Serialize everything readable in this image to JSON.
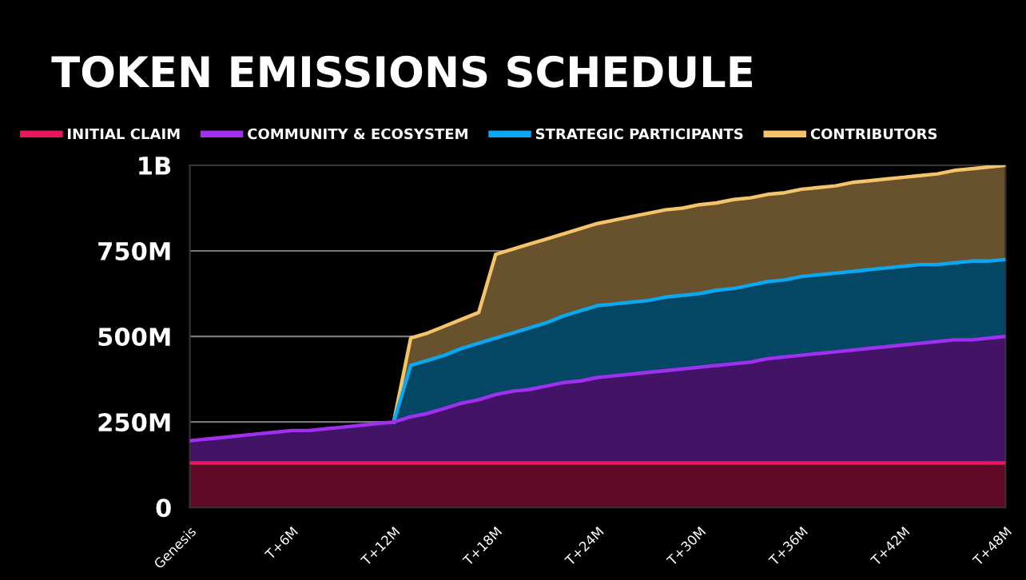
{
  "chart_data": {
    "type": "area",
    "title": "TOKEN EMISSIONS SCHEDULE",
    "categories": [
      "Genesis",
      null,
      null,
      null,
      null,
      null,
      "T+6M",
      null,
      null,
      null,
      null,
      null,
      "T+12M",
      null,
      null,
      null,
      null,
      null,
      "T+18M",
      null,
      null,
      null,
      null,
      null,
      "T+24M",
      null,
      null,
      null,
      null,
      null,
      "T+30M",
      null,
      null,
      null,
      null,
      null,
      "T+36M",
      null,
      null,
      null,
      null,
      null,
      "T+42M",
      null,
      null,
      null,
      null,
      null,
      "T+48M"
    ],
    "ylim": [
      0,
      1000000000
    ],
    "yticks": [
      0,
      {
        "value": 250000000,
        "label": "250M"
      },
      {
        "value": 500000000,
        "label": "500M"
      },
      {
        "value": 750000000,
        "label": "750M"
      },
      {
        "value": 1000000000,
        "label": "1B"
      }
    ],
    "grid": "y",
    "legend": "top",
    "series": [
      {
        "name": "CONTRIBUTORS",
        "color": "#f5c36a",
        "values": [
          null,
          null,
          null,
          null,
          null,
          null,
          null,
          null,
          null,
          null,
          null,
          null,
          250000000,
          495000000,
          510000000,
          530000000,
          550000000,
          570000000,
          740000000,
          755000000,
          770000000,
          785000000,
          800000000,
          815000000,
          830000000,
          840000000,
          850000000,
          860000000,
          870000000,
          875000000,
          885000000,
          890000000,
          900000000,
          905000000,
          915000000,
          920000000,
          930000000,
          935000000,
          940000000,
          950000000,
          955000000,
          960000000,
          965000000,
          970000000,
          975000000,
          985000000,
          990000000,
          995000000,
          1000000000
        ]
      },
      {
        "name": "STRATEGIC PARTICIPANTS",
        "color": "#0aa8f0",
        "values": [
          null,
          null,
          null,
          null,
          null,
          null,
          null,
          null,
          null,
          null,
          null,
          null,
          250000000,
          415000000,
          430000000,
          445000000,
          465000000,
          480000000,
          495000000,
          510000000,
          525000000,
          540000000,
          560000000,
          575000000,
          590000000,
          595000000,
          600000000,
          605000000,
          615000000,
          620000000,
          625000000,
          635000000,
          640000000,
          650000000,
          660000000,
          665000000,
          675000000,
          680000000,
          685000000,
          690000000,
          695000000,
          700000000,
          705000000,
          710000000,
          710000000,
          715000000,
          720000000,
          720000000,
          725000000
        ]
      },
      {
        "name": "COMMUNITY & ECOSYSTEM",
        "color": "#a030f0",
        "values": [
          195000000,
          200000000,
          205000000,
          210000000,
          215000000,
          220000000,
          225000000,
          225000000,
          230000000,
          235000000,
          240000000,
          245000000,
          250000000,
          265000000,
          275000000,
          290000000,
          305000000,
          315000000,
          330000000,
          340000000,
          345000000,
          355000000,
          365000000,
          370000000,
          380000000,
          385000000,
          390000000,
          395000000,
          400000000,
          405000000,
          410000000,
          415000000,
          420000000,
          425000000,
          435000000,
          440000000,
          445000000,
          450000000,
          455000000,
          460000000,
          465000000,
          470000000,
          475000000,
          480000000,
          485000000,
          490000000,
          490000000,
          495000000,
          500000000
        ]
      },
      {
        "name": "INITIAL CLAIM",
        "color": "#e8175d",
        "values": [
          130000000,
          130000000,
          130000000,
          130000000,
          130000000,
          130000000,
          130000000,
          130000000,
          130000000,
          130000000,
          130000000,
          130000000,
          130000000,
          130000000,
          130000000,
          130000000,
          130000000,
          130000000,
          130000000,
          130000000,
          130000000,
          130000000,
          130000000,
          130000000,
          130000000,
          130000000,
          130000000,
          130000000,
          130000000,
          130000000,
          130000000,
          130000000,
          130000000,
          130000000,
          130000000,
          130000000,
          130000000,
          130000000,
          130000000,
          130000000,
          130000000,
          130000000,
          130000000,
          130000000,
          130000000,
          130000000,
          130000000,
          130000000,
          130000000
        ]
      }
    ]
  }
}
